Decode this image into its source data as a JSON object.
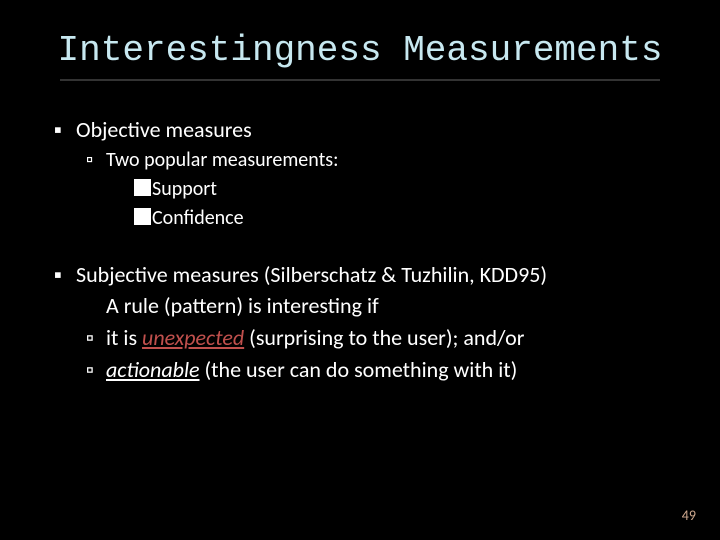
{
  "slide": {
    "title": "Interestingness Measurements",
    "title_fontsize": 36,
    "title_color": "#c7e8f0",
    "body_fontsize": 22,
    "sub_fontsize": 20,
    "background_color": "#000000",
    "text_color": "#ffffff",
    "accent_color": "#c0504d",
    "underline_color": "#333333"
  },
  "bullets": {
    "b1": "Objective measures",
    "b1a": "Two popular measurements:",
    "b1a1": "Support",
    "b1a2": "Confidence",
    "b2": "Subjective  measures (Silberschatz & Tuzhilin, KDD95)",
    "b2x": "A rule (pattern) is interesting if",
    "b2a_pre": "it is ",
    "b2a_em": "unexpected",
    "b2a_post": " (surprising to the user); and/or",
    "b2b_em": "actionable",
    "b2b_post": " (the user can do something with it)"
  },
  "page_number": "49",
  "page_number_fontsize": 14,
  "page_number_color": "#cfa98f"
}
